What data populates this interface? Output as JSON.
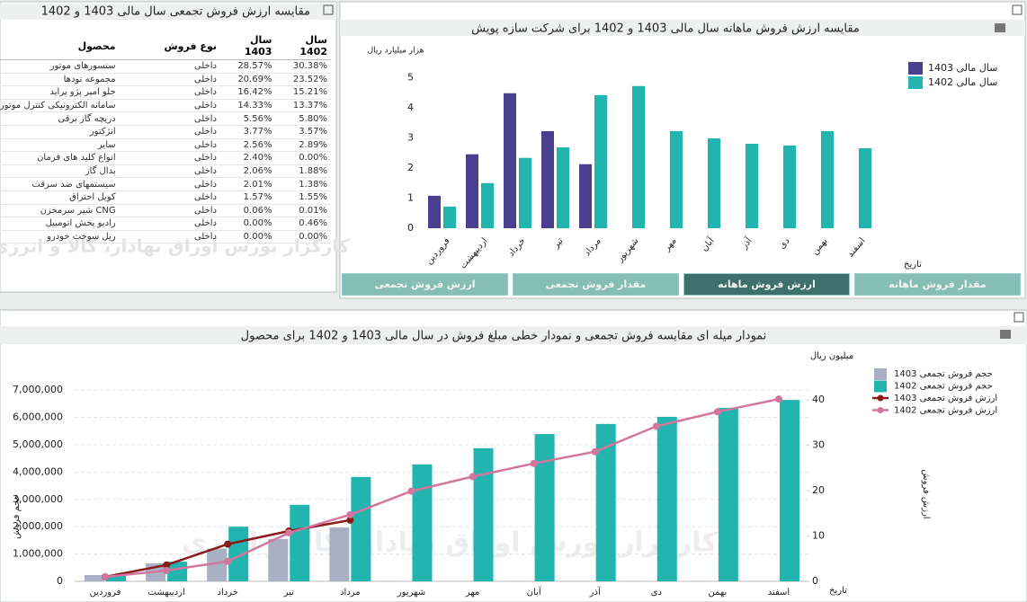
{
  "table": {
    "title": "مقایسه ارزش فروش تجمعی سال مالی 1403 و 1402",
    "columns": [
      "محصول",
      "نوع فروش",
      "سال 1403",
      "سال 1402"
    ],
    "rows": [
      [
        "سنسورهای موتور",
        "داخلی",
        "28.57%",
        "30.38%"
      ],
      [
        "مجموعه تودها",
        "داخلی",
        "20.69%",
        "23.52%"
      ],
      [
        "جلو امپر پژو پراید",
        "داخلی",
        "16.42%",
        "15.21%"
      ],
      [
        "سامانه الکترونیکی کنترل موتور",
        "داخلی",
        "14.33%",
        "13.37%"
      ],
      [
        "دریچه گاز برقی",
        "داخلی",
        "5.56%",
        "5.80%"
      ],
      [
        "انژکتور",
        "داخلی",
        "3.77%",
        "3.57%"
      ],
      [
        "سایر",
        "داخلی",
        "2.56%",
        "2.89%"
      ],
      [
        "انواع کلید های فرمان",
        "داخلی",
        "2.40%",
        "0.00%"
      ],
      [
        "پدال گاز",
        "داخلی",
        "2.06%",
        "1.88%"
      ],
      [
        "سیستمهای ضد سرقت",
        "داخلی",
        "2.01%",
        "1.38%"
      ],
      [
        "کویل احتراق",
        "داخلی",
        "1.57%",
        "1.55%"
      ],
      [
        "CNG شیر سرمخزن",
        "داخلی",
        "0.06%",
        "0.01%"
      ],
      [
        "رادیو پخش اتومبیل",
        "داخلی",
        "0.00%",
        "0.46%"
      ],
      [
        "ریل سوخت خودرو",
        "داخلی",
        "0.00%",
        "0.00%"
      ]
    ]
  },
  "watermark": "کارگزار بورس اوراق بهادار، کالا و انرژی",
  "buttons": {
    "labels": [
      "ارزش فروش تجمعی",
      "مقدار فروش تجمعی",
      "ارزش فروش ماهانه",
      "مقدار فروش ماهانه"
    ],
    "active": 2
  },
  "chart_data": [
    {
      "type": "bar",
      "title": "مقایسه ارزش فروش ماهانه سال مالی 1403 و 1402 برای شرکت سازه پویش",
      "y_label": "هزار میلیارد ریال",
      "x_label": "تاریخ",
      "categories": [
        "فروردین",
        "اردیبهشت",
        "خرداد",
        "تیر",
        "مرداد",
        "شهریور",
        "مهر",
        "آبان",
        "آذر",
        "دی",
        "بهمن",
        "اسفند"
      ],
      "series": [
        {
          "name": "سال مالی 1403",
          "color": "#4a3f8f",
          "values": [
            1.08,
            2.46,
            4.49,
            3.23,
            2.13,
            null,
            null,
            null,
            null,
            null,
            null,
            null
          ]
        },
        {
          "name": "سال مالی 1402",
          "color": "#22b5b0",
          "values": [
            0.72,
            1.5,
            2.34,
            2.69,
            4.43,
            4.73,
            3.23,
            2.99,
            2.81,
            2.75,
            3.23,
            2.66
          ]
        }
      ],
      "ylim": [
        0,
        5.5
      ],
      "yticks": [
        0,
        1,
        2,
        3,
        4,
        5
      ],
      "grid": false
    },
    {
      "type": "combo",
      "title": "نمودار میله ای مقایسه فروش تجمعی و نمودار خطی مبلغ فروش در سال مالی 1403 و 1402 برای محصول",
      "y_label": "حجم فروش",
      "y2_label": "ارزش فروش",
      "y2_unit": "میلیون ریال",
      "x_label": "تاریخ",
      "categories": [
        "فروردین",
        "اردیبهشت",
        "خرداد",
        "تیر",
        "مرداد",
        "شهریور",
        "مهر",
        "آبان",
        "آذر",
        "دی",
        "بهمن",
        "اسفند"
      ],
      "series": [
        {
          "name": "حجم فروش تجمعی 1403",
          "type": "bar",
          "color": "#aab0c4",
          "values": [
            230000,
            660000,
            1200000,
            1550000,
            1970000,
            null,
            null,
            null,
            null,
            null,
            null,
            null
          ]
        },
        {
          "name": "حجم فروش تجمعی 1402",
          "type": "bar",
          "color": "#22b5b0",
          "values": [
            230000,
            720000,
            2000000,
            2800000,
            3820000,
            4280000,
            4870000,
            5390000,
            5760000,
            6020000,
            6350000,
            6640000
          ]
        },
        {
          "name": "ارزش فروش تجمعی 1403",
          "type": "line",
          "axis": "y2",
          "color": "#8b1a1a",
          "values": [
            1.0,
            3.6,
            8.2,
            11.1,
            13.5,
            null,
            null,
            null,
            null,
            null,
            null,
            null
          ]
        },
        {
          "name": "ارزش فروش تجمعی 1402",
          "type": "line",
          "axis": "y2",
          "color": "#d3759d",
          "values": [
            1.0,
            2.4,
            4.4,
            10.7,
            14.7,
            19.9,
            23.1,
            26.0,
            28.6,
            34.2,
            37.4,
            40.2
          ]
        }
      ],
      "ylim": [
        0,
        7300000
      ],
      "yticks": [
        0,
        {
          "value": 1000000,
          "label": "1,000,000"
        },
        {
          "value": 2000000,
          "label": "2,000,000"
        },
        {
          "value": 3000000,
          "label": "3,000,000"
        },
        {
          "value": 4000000,
          "label": "4,000,000"
        },
        {
          "value": 5000000,
          "label": "5,000,000"
        },
        {
          "value": 6000000,
          "label": "6,000,000"
        },
        {
          "value": 7000000,
          "label": "7,000,000"
        }
      ],
      "y2lim": [
        0,
        44
      ],
      "y2ticks": [
        0,
        10,
        20,
        30,
        40
      ],
      "grid": true
    }
  ]
}
